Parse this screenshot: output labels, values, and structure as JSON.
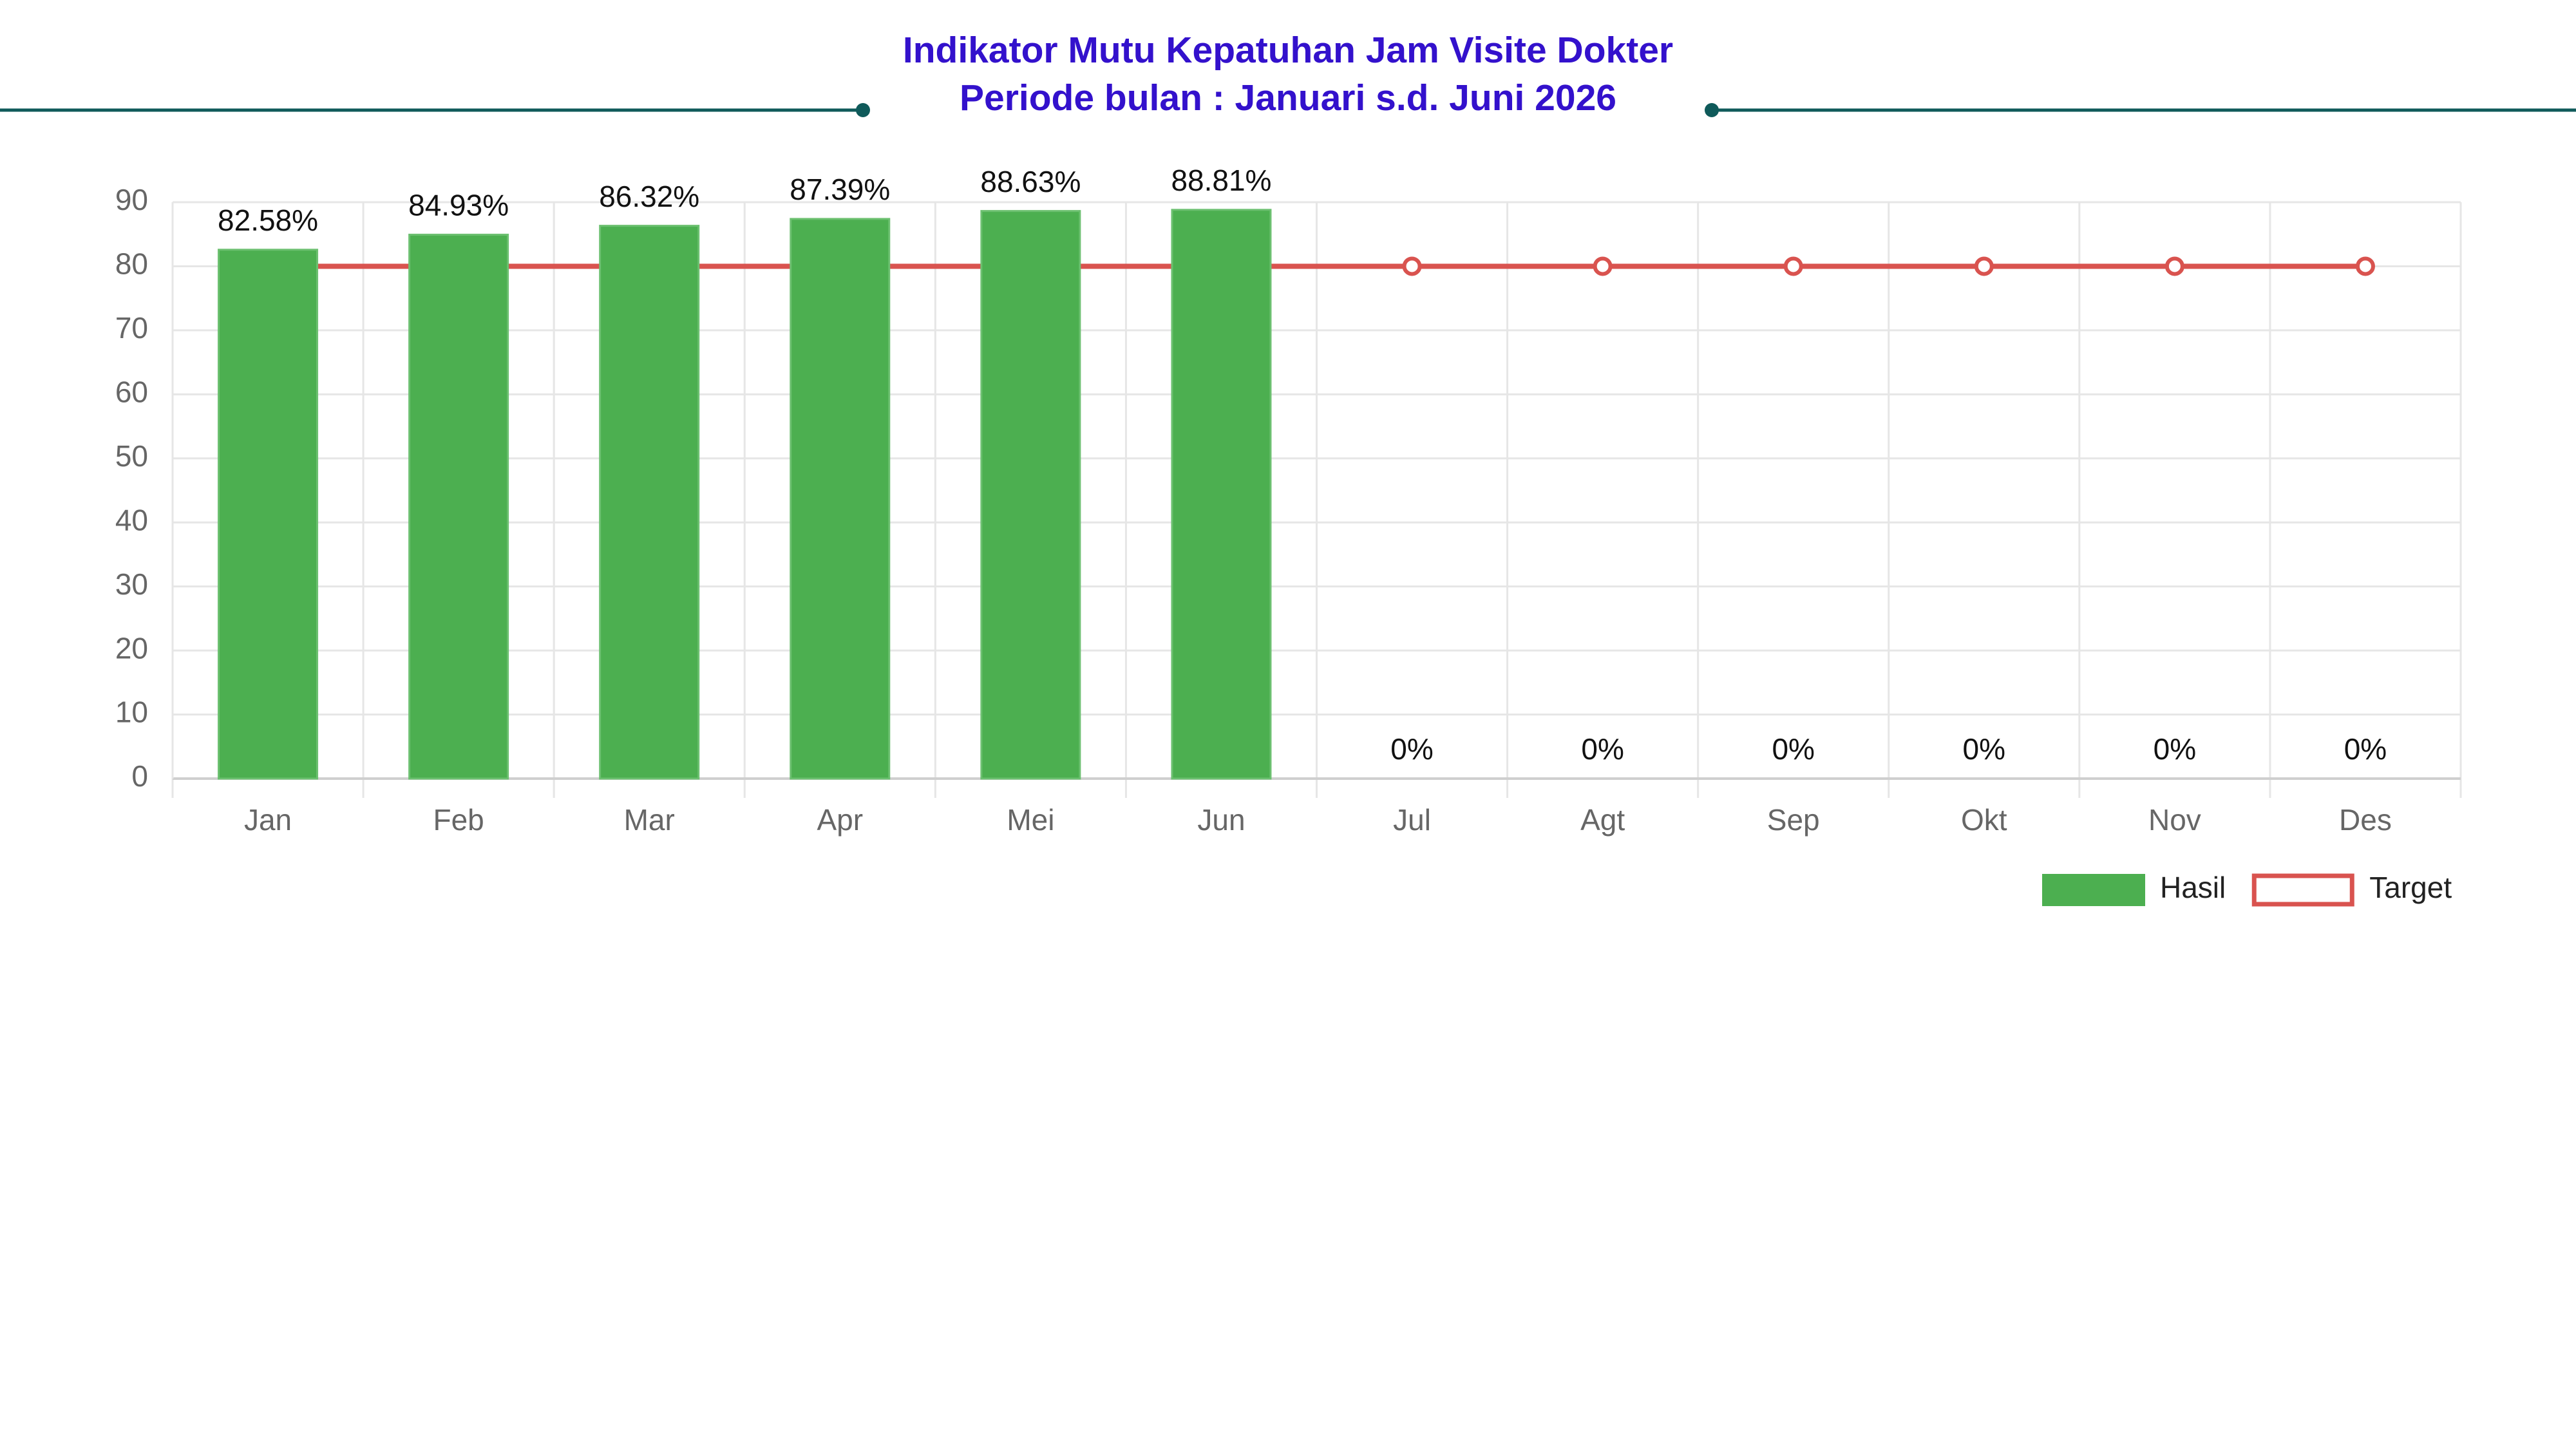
{
  "chart_data": {
    "type": "bar",
    "title": "Indikator Mutu Kepatuhan Jam Visite Dokter",
    "subtitle": "Periode bulan : Januari s.d. Juni 2026",
    "categories": [
      "Jan",
      "Feb",
      "Mar",
      "Apr",
      "Mei",
      "Jun",
      "Jul",
      "Agt",
      "Sep",
      "Okt",
      "Nov",
      "Des"
    ],
    "series": [
      {
        "name": "Hasil",
        "type": "bar",
        "color": "#4caf50",
        "values": [
          82.58,
          84.93,
          86.32,
          87.39,
          88.63,
          88.81,
          0,
          0,
          0,
          0,
          0,
          0
        ],
        "value_labels": [
          "82.58%",
          "84.93%",
          "86.32%",
          "87.39%",
          "88.63%",
          "88.81%",
          "0%",
          "0%",
          "0%",
          "0%",
          "0%",
          "0%"
        ]
      },
      {
        "name": "Target",
        "type": "line",
        "color": "#d9534f",
        "values": [
          80,
          80,
          80,
          80,
          80,
          80,
          80,
          80,
          80,
          80,
          80,
          80
        ]
      }
    ],
    "ylim": [
      0,
      90
    ],
    "yticks": [
      0,
      10,
      20,
      30,
      40,
      50,
      60,
      70,
      80,
      90
    ],
    "grid": true,
    "legend": "bottom-right"
  }
}
